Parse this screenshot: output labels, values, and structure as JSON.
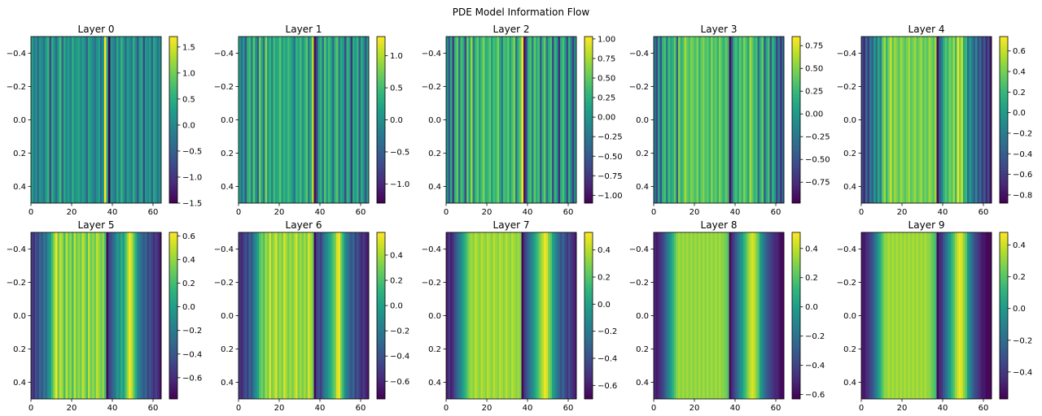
{
  "figure_title": "PDE Model Information Flow",
  "colormap": "viridis",
  "chart_data": [
    {
      "type": "heatmap",
      "title": "Layer 0",
      "x_ticks": [
        "0",
        "20",
        "40",
        "60"
      ],
      "y_ticks": [
        "-0.4",
        "-0.2",
        "0.0",
        "0.2",
        "0.4"
      ],
      "xlim": [
        0,
        64
      ],
      "ylim": [
        0.5,
        -0.5
      ],
      "colorbar_range": [
        -1.5,
        1.7
      ],
      "colorbar_ticks": [
        "1.5",
        "1.0",
        "0.5",
        "0.0",
        "-0.5",
        "-1.0",
        "-1.5"
      ],
      "colorbar_tick_values": [
        1.5,
        1.0,
        0.5,
        0.0,
        -0.5,
        -1.0,
        -1.5
      ],
      "column_values": [
        0.4,
        -0.2,
        0.1,
        -0.4,
        0.2,
        0.0,
        -0.3,
        0.3,
        0.6,
        -0.8,
        0.5,
        0.1,
        -0.4,
        0.3,
        0.7,
        -0.5,
        0.4,
        0.0,
        0.3,
        -0.2,
        0.5,
        0.1,
        0.2,
        0.4,
        0.0,
        0.3,
        0.1,
        -0.5,
        0.4,
        0.2,
        0.0,
        -0.3,
        0.1,
        0.3,
        -0.4,
        0.2,
        1.7,
        0.3,
        -1.5,
        0.2,
        0.0,
        -0.3,
        0.4,
        -0.1,
        0.6,
        0.2,
        -0.4,
        0.3,
        0.1,
        -0.2,
        0.5,
        0.0,
        -0.6,
        0.3,
        0.4,
        -0.8,
        0.2,
        0.0,
        0.3,
        -0.5,
        0.4,
        0.1,
        -0.3,
        0.2
      ]
    },
    {
      "type": "heatmap",
      "title": "Layer 1",
      "x_ticks": [
        "0",
        "20",
        "40",
        "60"
      ],
      "y_ticks": [
        "-0.4",
        "-0.2",
        "0.0",
        "0.2",
        "0.4"
      ],
      "xlim": [
        0,
        64
      ],
      "ylim": [
        0.5,
        -0.5
      ],
      "colorbar_range": [
        -1.3,
        1.3
      ],
      "colorbar_ticks": [
        "1.0",
        "0.5",
        "0.0",
        "-0.5",
        "-1.0"
      ],
      "colorbar_tick_values": [
        1.0,
        0.5,
        0.0,
        -0.5,
        -1.0
      ],
      "column_values": [
        0.2,
        -0.4,
        0.1,
        -0.6,
        0.3,
        0.5,
        -0.2,
        0.6,
        0.1,
        -0.5,
        0.7,
        0.2,
        -0.3,
        0.8,
        0.1,
        0.4,
        -0.1,
        0.5,
        0.2,
        0.3,
        0.6,
        0.1,
        0.4,
        0.2,
        0.5,
        0.3,
        0.1,
        -0.3,
        0.4,
        0.2,
        0.5,
        0.0,
        0.3,
        0.6,
        -0.2,
        0.3,
        1.0,
        -1.2,
        -0.8,
        0.2,
        0.4,
        -0.3,
        0.6,
        0.1,
        0.5,
        0.2,
        -0.4,
        0.4,
        0.6,
        -0.2,
        0.3,
        0.1,
        -0.7,
        0.4,
        0.2,
        -0.9,
        0.3,
        0.1,
        0.4,
        -0.5,
        0.3,
        0.0,
        -0.6,
        0.2
      ]
    },
    {
      "type": "heatmap",
      "title": "Layer 2",
      "x_ticks": [
        "0",
        "20",
        "40",
        "60"
      ],
      "y_ticks": [
        "-0.4",
        "-0.2",
        "0.0",
        "0.2",
        "0.4"
      ],
      "xlim": [
        0,
        64
      ],
      "ylim": [
        0.5,
        -0.5
      ],
      "colorbar_range": [
        -1.1,
        1.03
      ],
      "colorbar_ticks": [
        "1.00",
        "0.75",
        "0.50",
        "0.25",
        "0.00",
        "-0.25",
        "-0.50",
        "-0.75",
        "-1.00"
      ],
      "colorbar_tick_values": [
        1.0,
        0.75,
        0.5,
        0.25,
        0.0,
        -0.25,
        -0.5,
        -0.75,
        -1.0
      ],
      "column_values": [
        0.0,
        -0.5,
        0.2,
        -0.7,
        0.3,
        0.5,
        -0.3,
        0.4,
        0.2,
        -0.6,
        0.5,
        0.1,
        0.7,
        -0.2,
        0.3,
        0.5,
        0.1,
        0.4,
        0.6,
        0.2,
        0.3,
        0.5,
        0.1,
        0.4,
        0.3,
        0.6,
        0.2,
        -0.2,
        0.4,
        0.3,
        0.5,
        0.1,
        0.4,
        0.6,
        -0.3,
        0.3,
        0.5,
        1.0,
        -1.0,
        -0.6,
        0.3,
        0.4,
        -0.2,
        0.5,
        0.2,
        0.4,
        -0.5,
        0.3,
        0.5,
        -0.3,
        0.2,
        0.4,
        -0.6,
        0.3,
        0.1,
        -0.8,
        0.2,
        0.4,
        0.1,
        -0.6,
        0.3,
        -0.2,
        -0.7,
        0.1
      ]
    },
    {
      "type": "heatmap",
      "title": "Layer 3",
      "x_ticks": [
        "0",
        "20",
        "40",
        "60"
      ],
      "y_ticks": [
        "-0.4",
        "-0.2",
        "0.0",
        "0.2",
        "0.4"
      ],
      "xlim": [
        0,
        64
      ],
      "ylim": [
        0.5,
        -0.5
      ],
      "colorbar_range": [
        -0.98,
        0.85
      ],
      "colorbar_ticks": [
        "0.75",
        "0.50",
        "0.25",
        "0.00",
        "-0.25",
        "-0.50",
        "-0.75"
      ],
      "colorbar_tick_values": [
        0.75,
        0.5,
        0.25,
        0.0,
        -0.25,
        -0.5,
        -0.75
      ],
      "column_values": [
        -0.2,
        -0.6,
        0.1,
        -0.5,
        0.2,
        0.3,
        -0.2,
        0.3,
        0.1,
        0.2,
        0.4,
        -0.4,
        0.5,
        0.2,
        0.3,
        0.6,
        0.4,
        0.3,
        0.5,
        0.4,
        0.3,
        0.5,
        0.2,
        0.4,
        0.5,
        0.3,
        0.4,
        0.2,
        0.5,
        0.3,
        0.4,
        0.2,
        0.5,
        0.3,
        0.2,
        0.4,
        0.3,
        -0.9,
        -0.5,
        0.2,
        0.3,
        0.1,
        0.4,
        0.2,
        0.5,
        0.3,
        0.1,
        0.6,
        0.4,
        0.2,
        0.3,
        -0.3,
        0.2,
        0.4,
        -0.4,
        0.1,
        0.3,
        -0.5,
        0.2,
        0.0,
        -0.6,
        -0.2,
        -0.7,
        -0.3
      ]
    },
    {
      "type": "heatmap",
      "title": "Layer 4",
      "x_ticks": [
        "0",
        "20",
        "40",
        "60"
      ],
      "y_ticks": [
        "-0.4",
        "-0.2",
        "0.0",
        "0.2",
        "0.4"
      ],
      "xlim": [
        0,
        64
      ],
      "ylim": [
        0.5,
        -0.5
      ],
      "colorbar_range": [
        -0.88,
        0.74
      ],
      "colorbar_ticks": [
        "0.6",
        "0.4",
        "0.2",
        "0.0",
        "-0.2",
        "-0.4",
        "-0.6",
        "-0.8"
      ],
      "colorbar_tick_values": [
        0.6,
        0.4,
        0.2,
        0.0,
        -0.2,
        -0.4,
        -0.6,
        -0.8
      ],
      "column_values": [
        -0.5,
        -0.7,
        -0.3,
        -0.6,
        -0.2,
        -0.4,
        0.0,
        -0.3,
        0.1,
        -0.2,
        0.3,
        0.5,
        0.2,
        0.4,
        0.6,
        0.3,
        0.5,
        0.4,
        0.3,
        0.5,
        0.4,
        0.3,
        0.4,
        0.5,
        0.3,
        0.4,
        0.5,
        0.3,
        0.4,
        0.5,
        0.3,
        0.4,
        0.3,
        0.5,
        0.4,
        0.3,
        0.5,
        -0.85,
        -0.4,
        -0.2,
        0.1,
        0.3,
        0.2,
        0.4,
        0.3,
        0.5,
        0.2,
        0.7,
        0.4,
        0.6,
        0.1,
        0.2,
        -0.3,
        0.0,
        -0.2,
        -0.4,
        -0.1,
        -0.5,
        -0.3,
        -0.6,
        -0.4,
        -0.7,
        -0.5,
        -0.8
      ]
    },
    {
      "type": "heatmap",
      "title": "Layer 5",
      "x_ticks": [
        "0",
        "20",
        "40",
        "60"
      ],
      "y_ticks": [
        "-0.4",
        "-0.2",
        "0.0",
        "0.2",
        "0.4"
      ],
      "xlim": [
        0,
        64
      ],
      "ylim": [
        0.5,
        -0.5
      ],
      "colorbar_range": [
        -0.78,
        0.63
      ],
      "colorbar_ticks": [
        "0.6",
        "0.4",
        "0.2",
        "0.0",
        "-0.2",
        "-0.4",
        "-0.6"
      ],
      "colorbar_tick_values": [
        0.6,
        0.4,
        0.2,
        0.0,
        -0.2,
        -0.4,
        -0.6
      ],
      "column_values": [
        -0.5,
        -0.6,
        -0.4,
        -0.5,
        -0.3,
        -0.4,
        -0.2,
        -0.3,
        -0.1,
        0.0,
        0.2,
        0.4,
        0.6,
        0.3,
        0.5,
        0.4,
        0.2,
        0.5,
        0.3,
        0.4,
        0.2,
        0.5,
        0.3,
        0.4,
        0.3,
        0.5,
        0.4,
        0.2,
        0.5,
        0.3,
        0.4,
        0.3,
        0.5,
        0.4,
        0.3,
        0.4,
        0.2,
        -0.75,
        -0.5,
        -0.4,
        -0.3,
        -0.2,
        0.0,
        -0.1,
        0.1,
        0.0,
        0.2,
        0.4,
        0.6,
        0.5,
        0.3,
        0.1,
        -0.1,
        -0.2,
        -0.3,
        -0.4,
        -0.3,
        -0.5,
        -0.4,
        -0.5,
        -0.6,
        -0.5,
        -0.6,
        -0.7
      ]
    },
    {
      "type": "heatmap",
      "title": "Layer 6",
      "x_ticks": [
        "0",
        "20",
        "40",
        "60"
      ],
      "y_ticks": [
        "-0.4",
        "-0.2",
        "0.0",
        "0.2",
        "0.4"
      ],
      "xlim": [
        0,
        64
      ],
      "ylim": [
        0.5,
        -0.5
      ],
      "colorbar_range": [
        -0.74,
        0.58
      ],
      "colorbar_ticks": [
        "0.4",
        "0.2",
        "0.0",
        "-0.2",
        "-0.4",
        "-0.6"
      ],
      "colorbar_tick_values": [
        0.4,
        0.2,
        0.0,
        -0.2,
        -0.4,
        -0.6
      ],
      "column_values": [
        -0.5,
        -0.6,
        -0.5,
        -0.4,
        -0.5,
        -0.3,
        -0.4,
        -0.2,
        -0.1,
        0.0,
        0.2,
        0.3,
        0.2,
        0.4,
        0.3,
        0.5,
        0.3,
        0.4,
        0.5,
        0.3,
        0.4,
        0.3,
        0.5,
        0.4,
        0.3,
        0.4,
        0.3,
        0.4,
        0.5,
        0.3,
        0.4,
        0.3,
        0.4,
        0.3,
        0.5,
        0.4,
        0.3,
        -0.72,
        -0.5,
        -0.4,
        -0.5,
        -0.3,
        -0.2,
        -0.1,
        0.0,
        0.1,
        0.2,
        0.3,
        0.5,
        0.55,
        0.3,
        0.1,
        -0.1,
        -0.2,
        -0.3,
        -0.4,
        -0.3,
        -0.5,
        -0.4,
        -0.5,
        -0.6,
        -0.5,
        -0.6,
        -0.65
      ]
    },
    {
      "type": "heatmap",
      "title": "Layer 7",
      "x_ticks": [
        "0",
        "20",
        "40",
        "60"
      ],
      "y_ticks": [
        "-0.4",
        "-0.2",
        "0.0",
        "0.2",
        "0.4"
      ],
      "xlim": [
        0,
        64
      ],
      "ylim": [
        0.5,
        -0.5
      ],
      "colorbar_range": [
        -0.7,
        0.53
      ],
      "colorbar_ticks": [
        "0.4",
        "0.2",
        "0.0",
        "-0.2",
        "-0.4",
        "-0.6"
      ],
      "colorbar_tick_values": [
        0.4,
        0.2,
        0.0,
        -0.2,
        -0.4,
        -0.6
      ],
      "column_values": [
        -0.6,
        -0.5,
        -0.6,
        -0.5,
        -0.4,
        -0.3,
        -0.2,
        -0.1,
        0.0,
        0.1,
        0.2,
        0.3,
        0.35,
        0.3,
        0.4,
        0.35,
        0.3,
        0.4,
        0.35,
        0.3,
        0.4,
        0.35,
        0.3,
        0.4,
        0.35,
        0.3,
        0.4,
        0.35,
        0.3,
        0.4,
        0.35,
        0.3,
        0.4,
        0.35,
        0.3,
        0.35,
        0.3,
        -0.68,
        -0.5,
        -0.4,
        -0.3,
        -0.2,
        -0.1,
        0.0,
        0.1,
        0.2,
        0.3,
        0.4,
        0.5,
        0.45,
        0.3,
        0.2,
        0.0,
        -0.1,
        -0.2,
        -0.3,
        -0.4,
        -0.3,
        -0.4,
        -0.5,
        -0.4,
        -0.5,
        -0.55,
        -0.6
      ]
    },
    {
      "type": "heatmap",
      "title": "Layer 8",
      "x_ticks": [
        "0",
        "20",
        "40",
        "60"
      ],
      "y_ticks": [
        "-0.4",
        "-0.2",
        "0.0",
        "0.2",
        "0.4"
      ],
      "xlim": [
        0,
        64
      ],
      "ylim": [
        0.5,
        -0.5
      ],
      "colorbar_range": [
        -0.63,
        0.51
      ],
      "colorbar_ticks": [
        "0.4",
        "0.2",
        "0.0",
        "-0.2",
        "-0.4",
        "-0.6"
      ],
      "colorbar_tick_values": [
        0.4,
        0.2,
        0.0,
        -0.2,
        -0.4,
        -0.6
      ],
      "column_values": [
        -0.5,
        -0.55,
        -0.5,
        -0.45,
        -0.4,
        -0.3,
        -0.2,
        -0.1,
        0.0,
        0.1,
        0.2,
        0.3,
        0.35,
        0.3,
        0.35,
        0.3,
        0.35,
        0.3,
        0.35,
        0.3,
        0.35,
        0.3,
        0.35,
        0.3,
        0.35,
        0.3,
        0.35,
        0.3,
        0.35,
        0.3,
        0.35,
        0.3,
        0.35,
        0.3,
        0.3,
        0.25,
        0.2,
        -0.6,
        -0.5,
        -0.4,
        -0.3,
        -0.2,
        -0.1,
        0.0,
        0.1,
        0.2,
        0.3,
        0.4,
        0.45,
        0.4,
        0.3,
        0.2,
        0.0,
        -0.1,
        -0.2,
        -0.3,
        -0.35,
        -0.4,
        -0.45,
        -0.5,
        -0.5,
        -0.55,
        -0.6,
        -0.6
      ]
    },
    {
      "type": "heatmap",
      "title": "Layer 9",
      "x_ticks": [
        "0",
        "20",
        "40",
        "60"
      ],
      "y_ticks": [
        "-0.4",
        "-0.2",
        "0.0",
        "0.2",
        "0.4"
      ],
      "xlim": [
        0,
        64
      ],
      "ylim": [
        0.5,
        -0.5
      ],
      "colorbar_range": [
        -0.57,
        0.48
      ],
      "colorbar_ticks": [
        "0.4",
        "0.2",
        "0.0",
        "-0.2",
        "-0.4"
      ],
      "colorbar_tick_values": [
        0.4,
        0.2,
        0.0,
        -0.2,
        -0.4
      ],
      "column_values": [
        -0.5,
        -0.5,
        -0.45,
        -0.4,
        -0.35,
        -0.3,
        -0.2,
        -0.1,
        0.0,
        0.1,
        0.2,
        0.3,
        0.3,
        0.35,
        0.3,
        0.35,
        0.3,
        0.35,
        0.3,
        0.35,
        0.3,
        0.35,
        0.3,
        0.35,
        0.3,
        0.35,
        0.3,
        0.35,
        0.3,
        0.35,
        0.3,
        0.35,
        0.3,
        0.3,
        0.25,
        0.2,
        0.15,
        -0.55,
        -0.45,
        -0.4,
        -0.3,
        -0.2,
        -0.1,
        0.0,
        0.1,
        0.2,
        0.3,
        0.4,
        0.45,
        0.4,
        0.3,
        0.2,
        0.0,
        -0.1,
        -0.2,
        -0.3,
        -0.35,
        -0.4,
        -0.45,
        -0.5,
        -0.5,
        -0.55,
        -0.55,
        -0.55
      ]
    }
  ]
}
